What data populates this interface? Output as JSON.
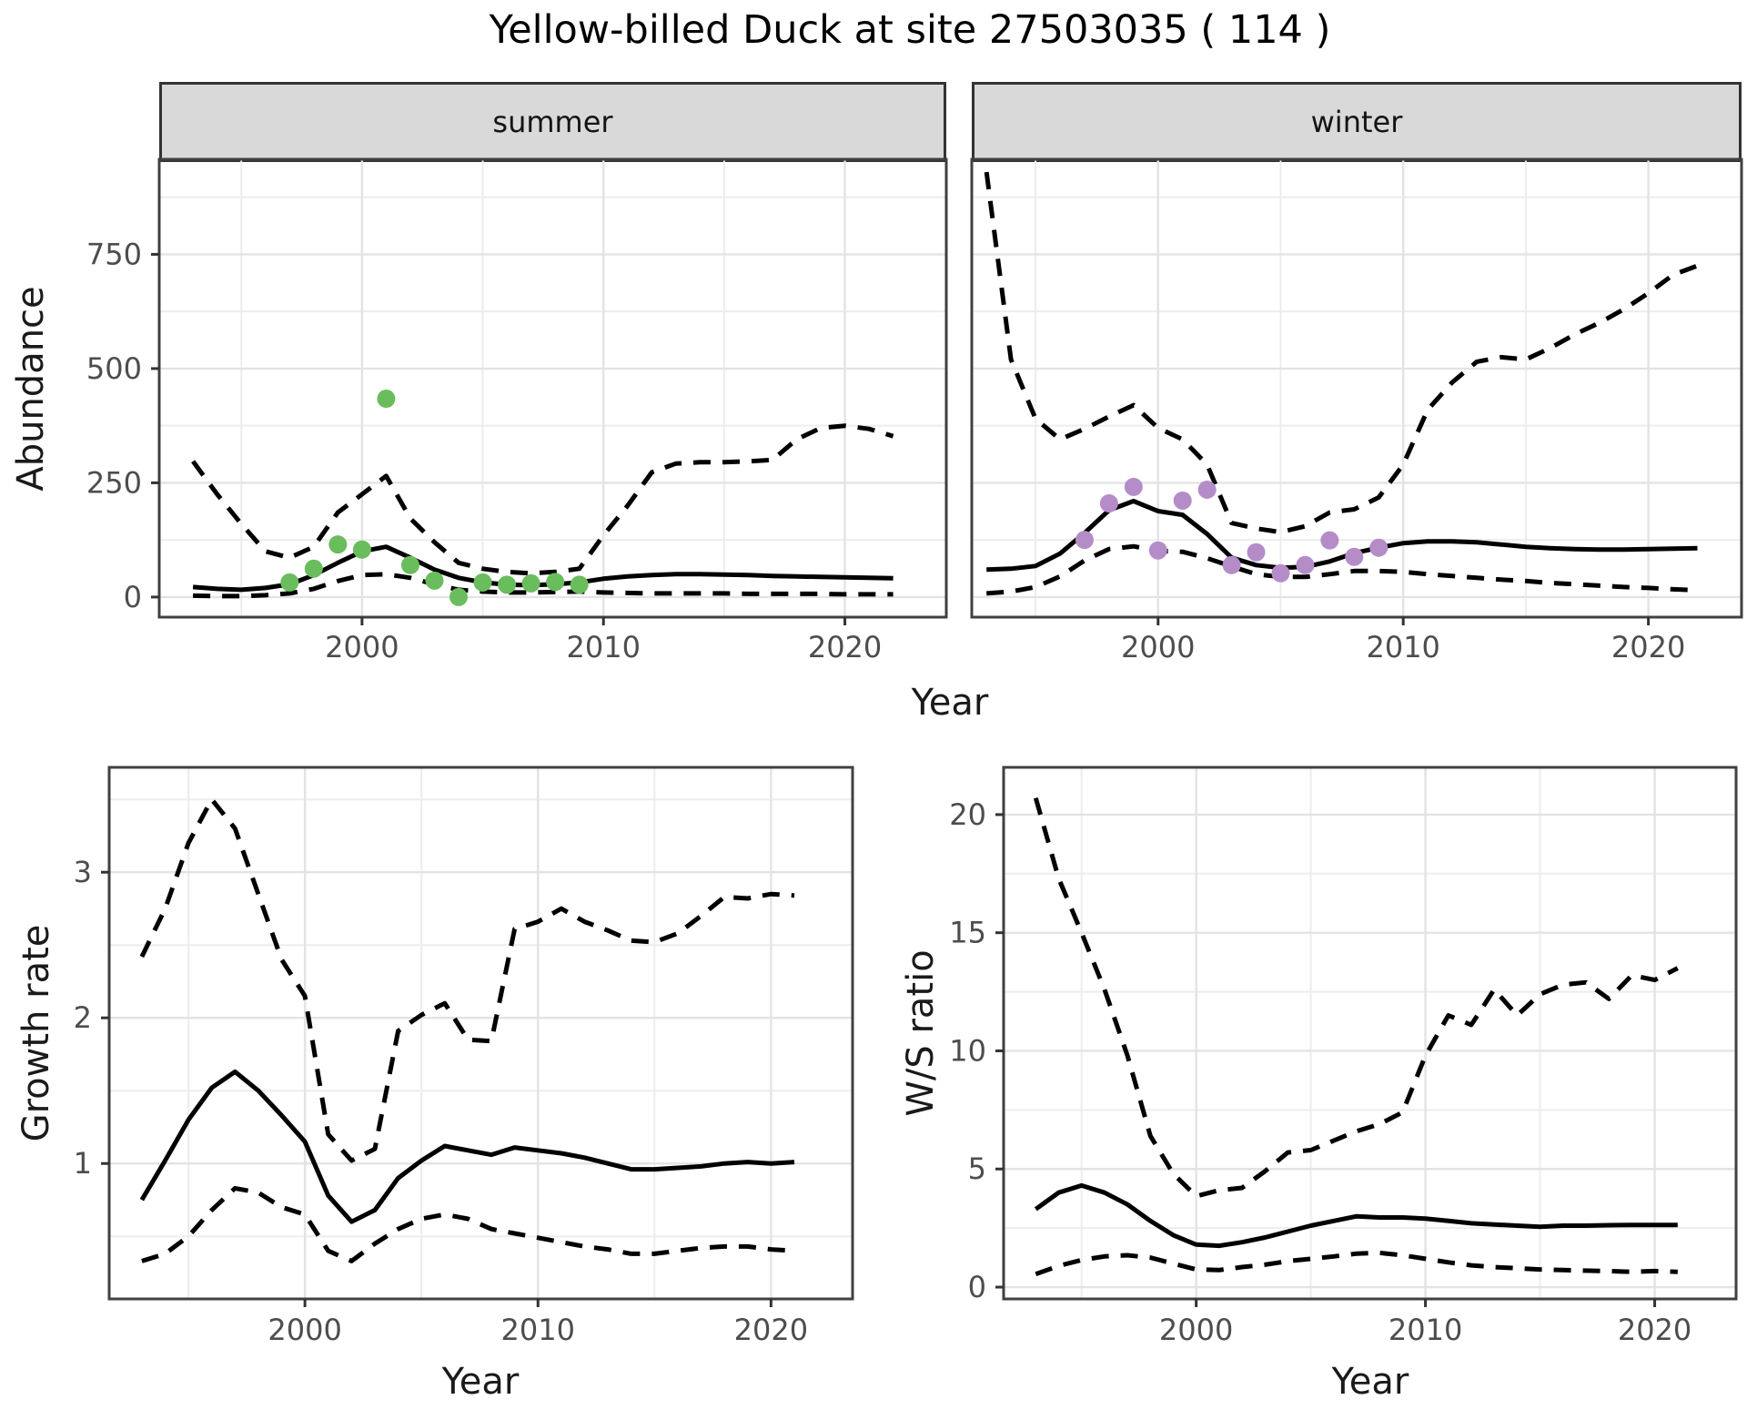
{
  "title": "Yellow-billed Duck at site 27503035 ( 114 )",
  "facets": [
    {
      "id": "summer",
      "label": "summer"
    },
    {
      "id": "winter",
      "label": "winter"
    }
  ],
  "colors": {
    "summer_points": "#6ABD5C",
    "winter_points": "#B48CC8",
    "line": "#000000",
    "grid_major": "#E3E3E3",
    "grid_minor": "#EDEDED",
    "strip_bg": "#D9D9D9",
    "strip_border": "#333333",
    "panel_border": "#404040",
    "tick": "#333333",
    "tick_label": "#4D4D4D",
    "text": "#1A1A1A",
    "background": "#FFFFFF"
  },
  "chart_data": [
    {
      "id": "abundance-summer",
      "type": "line",
      "facet": "summer",
      "xlabel": "Year",
      "ylabel": "Abundance",
      "xlim": [
        1991.6,
        2024.2
      ],
      "ylim": [
        -44,
        958
      ],
      "xticks": [
        2000,
        2010,
        2020
      ],
      "xticks_minor": [
        1995,
        2005,
        2015
      ],
      "yticks": [
        0,
        250,
        500,
        750
      ],
      "yticks_minor": [
        125,
        375,
        625,
        875
      ],
      "x": [
        1993,
        1994,
        1995,
        1996,
        1997,
        1998,
        1999,
        2000,
        2001,
        2002,
        2003,
        2004,
        2005,
        2006,
        2007,
        2008,
        2009,
        2010,
        2011,
        2012,
        2013,
        2014,
        2015,
        2016,
        2017,
        2018,
        2019,
        2020,
        2021,
        2022
      ],
      "series": [
        {
          "name": "upper-ci",
          "style": "dashed",
          "values": [
            297,
            225,
            160,
            100,
            86,
            110,
            185,
            225,
            265,
            172,
            120,
            75,
            62,
            55,
            52,
            55,
            62,
            135,
            200,
            273,
            292,
            295,
            295,
            297,
            300,
            345,
            370,
            375,
            368,
            352
          ]
        },
        {
          "name": "lower-ci",
          "style": "dashed",
          "values": [
            3,
            2,
            2,
            4,
            8,
            18,
            35,
            48,
            50,
            42,
            28,
            16,
            12,
            10,
            10,
            11,
            12,
            10,
            9,
            8,
            8,
            8,
            8,
            7,
            7,
            7,
            7,
            6,
            6,
            6
          ]
        },
        {
          "name": "median",
          "style": "solid",
          "values": [
            22,
            18,
            16,
            20,
            28,
            48,
            75,
            100,
            110,
            86,
            60,
            42,
            32,
            27,
            26,
            28,
            32,
            40,
            45,
            48,
            50,
            50,
            49,
            48,
            46,
            45,
            44,
            43,
            42,
            41
          ]
        },
        {
          "name": "observed-counts",
          "style": "points",
          "color_key": "summer_points",
          "x": [
            1997,
            1998,
            1999,
            2000,
            2001,
            2002,
            2003,
            2004,
            2005,
            2006,
            2007,
            2008,
            2009
          ],
          "values": [
            32,
            62,
            115,
            104,
            434,
            70,
            36,
            0,
            32,
            27,
            30,
            33,
            27
          ]
        }
      ]
    },
    {
      "id": "abundance-winter",
      "type": "line",
      "facet": "winter",
      "xlabel": "Year",
      "ylabel": "Abundance",
      "xlim": [
        1992.4,
        2023.8
      ],
      "ylim": [
        -44,
        958
      ],
      "xticks": [
        2000,
        2010,
        2020
      ],
      "xticks_minor": [
        1995,
        2005,
        2015
      ],
      "yticks": [
        0,
        250,
        500,
        750
      ],
      "yticks_minor": [
        125,
        375,
        625,
        875
      ],
      "x": [
        1993,
        1994,
        1995,
        1996,
        1997,
        1998,
        1999,
        2000,
        2001,
        2002,
        2003,
        2004,
        2005,
        2006,
        2007,
        2008,
        2009,
        2010,
        2011,
        2012,
        2013,
        2014,
        2015,
        2016,
        2017,
        2018,
        2019,
        2020,
        2021,
        2022
      ],
      "series": [
        {
          "name": "upper-ci",
          "style": "dashed",
          "values": [
            930,
            520,
            390,
            345,
            368,
            395,
            420,
            370,
            345,
            290,
            162,
            150,
            142,
            155,
            185,
            192,
            218,
            290,
            410,
            470,
            515,
            525,
            520,
            545,
            575,
            600,
            630,
            665,
            705,
            725
          ]
        },
        {
          "name": "lower-ci",
          "style": "dashed",
          "values": [
            8,
            12,
            22,
            45,
            80,
            105,
            111,
            101,
            99,
            85,
            67,
            50,
            44,
            44,
            50,
            57,
            57,
            55,
            50,
            46,
            42,
            38,
            35,
            31,
            28,
            25,
            22,
            20,
            17,
            15
          ]
        },
        {
          "name": "median",
          "style": "solid",
          "values": [
            60,
            62,
            68,
            95,
            140,
            190,
            210,
            188,
            180,
            138,
            86,
            70,
            64,
            66,
            78,
            96,
            108,
            118,
            122,
            122,
            120,
            115,
            110,
            107,
            105,
            104,
            104,
            105,
            106,
            107
          ]
        },
        {
          "name": "observed-counts",
          "style": "points",
          "color_key": "winter_points",
          "x": [
            1997,
            1998,
            1999,
            2000,
            2001,
            2002,
            2003,
            2004,
            2005,
            2006,
            2007,
            2008,
            2009
          ],
          "values": [
            125,
            205,
            241,
            102,
            211,
            235,
            70,
            98,
            52,
            70,
            124,
            88,
            108
          ]
        }
      ]
    },
    {
      "id": "growth-rate",
      "type": "line",
      "xlabel": "Year",
      "ylabel": "Growth rate",
      "xlim": [
        1991.6,
        2023.5
      ],
      "ylim": [
        0.07,
        3.72
      ],
      "xticks": [
        2000,
        2010,
        2020
      ],
      "xticks_minor": [
        1995,
        2005,
        2015
      ],
      "yticks": [
        1,
        2,
        3
      ],
      "yticks_minor": [
        0.5,
        1.5,
        2.5,
        3.5
      ],
      "x": [
        1993,
        1994,
        1995,
        1996,
        1997,
        1998,
        1999,
        2000,
        2001,
        2002,
        2003,
        2004,
        2005,
        2006,
        2007,
        2008,
        2009,
        2010,
        2011,
        2012,
        2013,
        2014,
        2015,
        2016,
        2017,
        2018,
        2019,
        2020,
        2021
      ],
      "series": [
        {
          "name": "upper-ci",
          "style": "dashed",
          "values": [
            2.42,
            2.75,
            3.2,
            3.5,
            3.3,
            2.85,
            2.4,
            2.15,
            1.2,
            1.02,
            1.1,
            1.91,
            2.02,
            2.1,
            1.85,
            1.84,
            2.61,
            2.66,
            2.75,
            2.66,
            2.6,
            2.53,
            2.52,
            2.58,
            2.7,
            2.83,
            2.82,
            2.85,
            2.84
          ]
        },
        {
          "name": "lower-ci",
          "style": "dashed",
          "values": [
            0.33,
            0.38,
            0.5,
            0.68,
            0.83,
            0.8,
            0.7,
            0.65,
            0.4,
            0.33,
            0.45,
            0.55,
            0.62,
            0.65,
            0.62,
            0.55,
            0.52,
            0.49,
            0.46,
            0.43,
            0.41,
            0.38,
            0.38,
            0.4,
            0.42,
            0.43,
            0.43,
            0.41,
            0.4
          ]
        },
        {
          "name": "median",
          "style": "solid",
          "values": [
            0.75,
            1.02,
            1.3,
            1.52,
            1.63,
            1.5,
            1.33,
            1.15,
            0.78,
            0.6,
            0.68,
            0.9,
            1.02,
            1.12,
            1.09,
            1.06,
            1.11,
            1.09,
            1.07,
            1.04,
            1.0,
            0.96,
            0.96,
            0.97,
            0.98,
            1.0,
            1.01,
            1.0,
            1.01
          ]
        }
      ]
    },
    {
      "id": "ws-ratio",
      "type": "line",
      "xlabel": "Year",
      "ylabel": "W/S ratio",
      "xlim": [
        1991.6,
        2023.55
      ],
      "ylim": [
        -0.5,
        22
      ],
      "xticks": [
        2000,
        2010,
        2020
      ],
      "xticks_minor": [
        1995,
        2005,
        2015
      ],
      "yticks": [
        0,
        5,
        10,
        15,
        20
      ],
      "yticks_minor": [
        2.5,
        7.5,
        12.5,
        17.5
      ],
      "x": [
        1993,
        1994,
        1995,
        1996,
        1997,
        1998,
        1999,
        2000,
        2001,
        2002,
        2003,
        2004,
        2005,
        2006,
        2007,
        2008,
        2009,
        2010,
        2011,
        2012,
        2013,
        2014,
        2015,
        2016,
        2017,
        2018,
        2019,
        2020,
        2021
      ],
      "series": [
        {
          "name": "upper-ci",
          "style": "dashed",
          "values": [
            20.7,
            17.3,
            15.0,
            12.6,
            9.8,
            6.4,
            4.8,
            3.85,
            4.1,
            4.2,
            4.9,
            5.7,
            5.8,
            6.2,
            6.6,
            6.9,
            7.4,
            9.8,
            11.5,
            11.1,
            12.6,
            11.5,
            12.4,
            12.8,
            12.9,
            12.2,
            13.2,
            13.0,
            13.5
          ]
        },
        {
          "name": "lower-ci",
          "style": "dashed",
          "values": [
            0.55,
            0.9,
            1.15,
            1.3,
            1.35,
            1.25,
            1.0,
            0.75,
            0.72,
            0.85,
            0.95,
            1.1,
            1.2,
            1.3,
            1.42,
            1.45,
            1.35,
            1.2,
            1.05,
            0.92,
            0.85,
            0.8,
            0.75,
            0.72,
            0.7,
            0.68,
            0.65,
            0.68,
            0.65
          ]
        },
        {
          "name": "median",
          "style": "solid",
          "values": [
            3.3,
            4.0,
            4.3,
            4.0,
            3.5,
            2.8,
            2.2,
            1.8,
            1.75,
            1.9,
            2.1,
            2.35,
            2.6,
            2.8,
            3.0,
            2.95,
            2.95,
            2.9,
            2.8,
            2.7,
            2.65,
            2.6,
            2.55,
            2.6,
            2.6,
            2.62,
            2.63,
            2.63,
            2.63
          ]
        }
      ]
    }
  ]
}
